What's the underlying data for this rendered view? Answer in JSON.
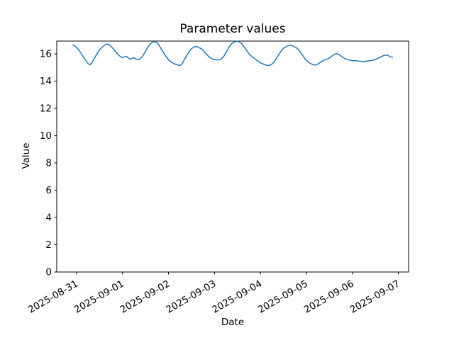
{
  "figure": {
    "background": "#ffffff"
  },
  "chart_data": {
    "type": "line",
    "title": "Parameter values",
    "xlabel": "Date",
    "ylabel": "Value",
    "line_color": "#1f77b4",
    "axis_color": "#000000",
    "grid": false,
    "legend": "none",
    "ylim": [
      0,
      16.94
    ],
    "y_ticks": [
      0,
      2,
      4,
      6,
      8,
      10,
      12,
      14,
      16
    ],
    "x_tick_labels": [
      "2025-08-31",
      "2025-09-01",
      "2025-09-02",
      "2025-09-03",
      "2025-09-04",
      "2025-09-05",
      "2025-09-06",
      "2025-09-07"
    ],
    "x_tick_rotation_deg": 30,
    "x_start": "2025-08-30 22:00",
    "x_step_hours": 1,
    "x_tick_offset_hours": 2,
    "x_tick_interval_hours": 24,
    "series_name": "Parameter values",
    "values": [
      16.65,
      16.6,
      16.48,
      16.32,
      16.12,
      15.9,
      15.68,
      15.48,
      15.3,
      15.2,
      15.35,
      15.6,
      15.85,
      16.08,
      16.3,
      16.45,
      16.58,
      16.68,
      16.72,
      16.68,
      16.55,
      16.4,
      16.22,
      16.05,
      15.9,
      15.8,
      15.72,
      15.78,
      15.82,
      15.7,
      15.62,
      15.68,
      15.72,
      15.62,
      15.58,
      15.62,
      15.75,
      15.95,
      16.2,
      16.45,
      16.65,
      16.8,
      16.88,
      16.9,
      16.82,
      16.65,
      16.42,
      16.18,
      15.95,
      15.75,
      15.58,
      15.45,
      15.35,
      15.28,
      15.22,
      15.18,
      15.15,
      15.25,
      15.5,
      15.75,
      16.0,
      16.22,
      16.38,
      16.48,
      16.55,
      16.52,
      16.45,
      16.4,
      16.28,
      16.1,
      15.95,
      15.8,
      15.7,
      15.62,
      15.58,
      15.56,
      15.55,
      15.58,
      15.68,
      15.85,
      16.1,
      16.35,
      16.58,
      16.75,
      16.85,
      16.9,
      16.93,
      16.88,
      16.78,
      16.6,
      16.4,
      16.2,
      16.02,
      15.88,
      15.75,
      15.65,
      15.55,
      15.45,
      15.35,
      15.28,
      15.22,
      15.18,
      15.15,
      15.16,
      15.25,
      15.4,
      15.6,
      15.82,
      16.05,
      16.25,
      16.4,
      16.5,
      16.58,
      16.62,
      16.62,
      16.58,
      16.5,
      16.42,
      16.28,
      16.1,
      15.9,
      15.7,
      15.52,
      15.4,
      15.3,
      15.24,
      15.2,
      15.18,
      15.25,
      15.35,
      15.45,
      15.52,
      15.58,
      15.62,
      15.7,
      15.8,
      15.92,
      16.0,
      16.02,
      15.95,
      15.85,
      15.75,
      15.66,
      15.6,
      15.56,
      15.53,
      15.5,
      15.5,
      15.5,
      15.48,
      15.46,
      15.45,
      15.44,
      15.46,
      15.48,
      15.5,
      15.52,
      15.55,
      15.6,
      15.65,
      15.72,
      15.8,
      15.86,
      15.9,
      15.92,
      15.85,
      15.78,
      15.76
    ]
  }
}
